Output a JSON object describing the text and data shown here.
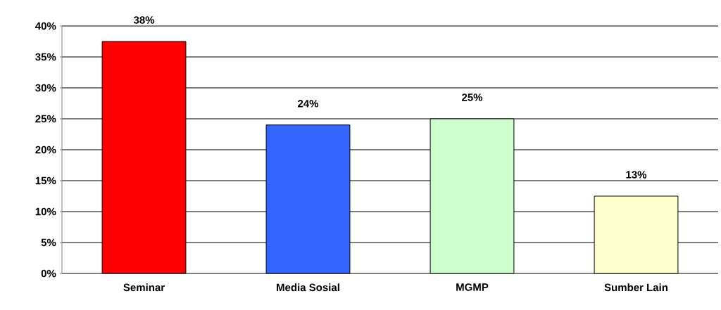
{
  "chart_data": {
    "type": "bar",
    "categories": [
      "Seminar",
      "Media Sosial",
      "MGMP",
      "Sumber Lain"
    ],
    "values": [
      37.5,
      24,
      25,
      12.5
    ],
    "value_labels": [
      "38%",
      "24%",
      "25%",
      "13%"
    ],
    "colors": [
      "#ff0000",
      "#3366ff",
      "#ccffcc",
      "#ffffcc"
    ],
    "ylim": [
      0,
      40
    ],
    "yticks": [
      {
        "value": 0,
        "label": "0%"
      },
      {
        "value": 5,
        "label": "5%"
      },
      {
        "value": 10,
        "label": "10%"
      },
      {
        "value": 15,
        "label": "15%"
      },
      {
        "value": 20,
        "label": "20%"
      },
      {
        "value": 25,
        "label": "25%"
      },
      {
        "value": 30,
        "label": "30%"
      },
      {
        "value": 35,
        "label": "35%"
      },
      {
        "value": 40,
        "label": "40%"
      }
    ],
    "grid": "y"
  }
}
